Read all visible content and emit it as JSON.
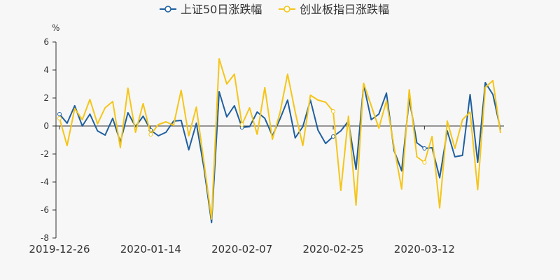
{
  "chart_data": {
    "type": "line",
    "unit": "%",
    "ylim": [
      -8,
      6
    ],
    "y_ticks": [
      -8,
      -6,
      -4,
      -2,
      0,
      2,
      4,
      6
    ],
    "grid": false,
    "legend_placement": "top-center",
    "x_tick_labels": [
      {
        "index": 0,
        "label": "2019-12-26"
      },
      {
        "index": 12,
        "label": "2020-01-14"
      },
      {
        "index": 24,
        "label": "2020-02-07"
      },
      {
        "index": 36,
        "label": "2020-02-25"
      },
      {
        "index": 48,
        "label": "2020-03-12"
      }
    ],
    "series": [
      {
        "name": "上证50日涨跌幅",
        "color": "#1f5f9f",
        "values": [
          0.85,
          0.2,
          1.45,
          0.0,
          0.85,
          -0.35,
          -0.65,
          0.55,
          -1.15,
          0.95,
          -0.05,
          0.7,
          -0.3,
          -0.7,
          -0.45,
          0.35,
          0.4,
          -1.7,
          0.2,
          -3.0,
          -6.9,
          2.45,
          0.65,
          1.45,
          -0.1,
          -0.05,
          1.0,
          0.55,
          -0.7,
          0.5,
          1.85,
          -0.85,
          -0.05,
          1.85,
          -0.3,
          -1.25,
          -0.75,
          -0.35,
          0.35,
          -3.1,
          2.95,
          0.45,
          0.85,
          2.35,
          -1.75,
          -3.2,
          1.95,
          -1.2,
          -1.6,
          -1.55,
          -3.7,
          -0.35,
          -2.2,
          -2.1,
          2.25,
          -2.6,
          3.1,
          2.25,
          -0.25
        ]
      },
      {
        "name": "创业板指日涨跌幅",
        "color": "#f5c518",
        "values": [
          0.55,
          -1.4,
          1.25,
          0.45,
          1.9,
          0.15,
          1.3,
          1.75,
          -1.55,
          2.7,
          -0.45,
          1.6,
          -0.6,
          0.1,
          0.3,
          0.05,
          2.55,
          -0.7,
          1.35,
          -2.6,
          -6.65,
          4.8,
          3.0,
          3.7,
          0.1,
          1.3,
          -0.6,
          2.75,
          -0.95,
          0.95,
          3.7,
          1.0,
          -1.4,
          2.2,
          1.85,
          1.7,
          1.05,
          -4.6,
          0.7,
          -5.65,
          3.05,
          1.45,
          -0.15,
          1.8,
          -1.5,
          -4.5,
          2.6,
          -2.2,
          -2.6,
          -0.75,
          -5.85,
          0.35,
          -1.6,
          0.45,
          1.0,
          -4.55,
          2.75,
          3.25,
          -0.5
        ]
      }
    ]
  }
}
